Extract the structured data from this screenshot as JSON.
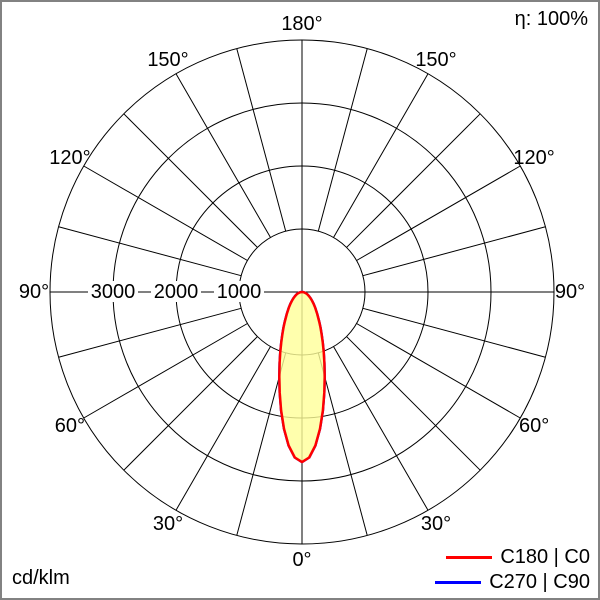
{
  "chart_data": {
    "type": "polar",
    "units_label": "cd/klm",
    "efficiency_label": "η: 100%",
    "angle_unit": "°",
    "angle_labels": [
      0,
      30,
      60,
      90,
      120,
      150,
      180
    ],
    "spoke_step_deg": 15,
    "rings": [
      1000,
      2000,
      3000,
      4000
    ],
    "ring_label_values": [
      1000,
      2000,
      3000
    ],
    "max_value": 4000,
    "grid_color": "#000000",
    "legend_position": "bottom-right",
    "series": [
      {
        "name": "C180 | C0",
        "color": "#ff0000",
        "fill": "#ffff99",
        "angles_deg": [
          0,
          2.5,
          5,
          7.5,
          10,
          12.5,
          15,
          17.5,
          20,
          22.5,
          25,
          27.5,
          30,
          35,
          40,
          45,
          50,
          55,
          60,
          65,
          70,
          75,
          80,
          85,
          90
        ],
        "values": [
          2700,
          2630,
          2446,
          2190,
          1910,
          1638,
          1394,
          1184,
          1007,
          859,
          737,
          635,
          550,
          419,
          325,
          255,
          201,
          159,
          126,
          98,
          74,
          53,
          34,
          17,
          0
        ]
      },
      {
        "name": "C270 | C90",
        "color": "#0000ff",
        "fill": "none",
        "angles_deg": [
          0,
          2.5,
          5,
          7.5,
          10,
          12.5,
          15,
          17.5,
          20,
          22.5,
          25,
          27.5,
          30,
          35,
          40,
          45,
          50,
          55,
          60,
          65,
          70,
          75,
          80,
          85,
          90
        ],
        "values": [
          2700,
          2630,
          2446,
          2190,
          1910,
          1638,
          1394,
          1184,
          1007,
          859,
          737,
          635,
          550,
          419,
          325,
          255,
          201,
          159,
          126,
          98,
          74,
          53,
          34,
          17,
          0
        ]
      }
    ]
  }
}
